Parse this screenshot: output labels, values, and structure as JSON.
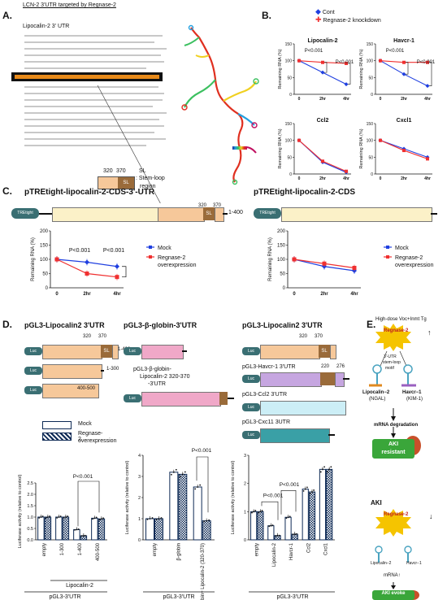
{
  "figure": {
    "panel_letters": {
      "a": "A.",
      "b": "B.",
      "c": "C.",
      "d": "D.",
      "e": "E."
    },
    "panel_a": {
      "heading": "LCN-2  3'UTR targeted by Regnase-2",
      "subheading": "Lipocalin-2 3' UTR",
      "sl_tick_320": "320",
      "sl_tick_370": "370",
      "sl_label": "SL",
      "sl_caption_1": "SL",
      "sl_caption_2": ": Stem-loop",
      "sl_caption_3": "region",
      "colorbar_colors": [
        "#1a2a9a",
        "#22a0e0",
        "#3cc060",
        "#f0d020",
        "#e03020",
        "#c01060"
      ]
    },
    "panel_b": {
      "legend_cont": "Cont",
      "legend_kd": "Regnase-2 knockdown",
      "color_cont": "#1f3fe0",
      "color_kd": "#f03030",
      "ylabel": "Remaining RNA (%)",
      "charts": [
        {
          "title": "Lipocalin-2",
          "p1": "P<0.001",
          "p2": "P<0.001"
        },
        {
          "title": "Havcr-1",
          "p1": "P<0.001",
          "p2": "P<0.001"
        },
        {
          "title": "Ccl2",
          "p1": "",
          "p2": ""
        },
        {
          "title": "Cxcl1",
          "p1": "",
          "p2": ""
        }
      ],
      "yticks": [
        "0",
        "50",
        "100",
        "150"
      ],
      "xticks": [
        "0",
        "2hr",
        "4hr"
      ]
    },
    "panel_c": {
      "title_left": "pTREtight-lipocalin-2-CDS-3'-UTR",
      "title_right": "pTREtight-lipocalin-2-CDS",
      "tre_label": "TREtight",
      "tick_320": "320",
      "tick_370": "370",
      "sl": "SL",
      "range_label": "1-400",
      "ylabel": "Remaining RNA (%)",
      "yticks": [
        "0",
        "50",
        "100",
        "150",
        "200"
      ],
      "xticks": [
        "0",
        "2hr",
        "4hr"
      ],
      "p_left_1": "P<0.001",
      "p_left_2": "P<0.001",
      "legend_mock": "Mock",
      "legend_reg_1": "Regnase-2",
      "legend_reg_2": "overexpression"
    },
    "panel_d": {
      "title_1": "pGL3-Lipocalin2 3'UTR",
      "title_2": "pGL3-β-globin-3'UTR",
      "title_3": "pGL3-Lipocalin2 3'UTR",
      "luc": "Luc",
      "sl": "SL",
      "tick_320": "320",
      "tick_370": "370",
      "tick_220": "220",
      "tick_276": "276",
      "range_1_400": "1-400",
      "range_1_300": "1-300",
      "range_400_500": "400-500",
      "bglobin_label": "pGL3-β-globin-",
      "chimera_label_1": "Lipocalin-2 320-370",
      "chimera_label_2": "-3'UTR",
      "havcr_label": "pGL3-Havcr-1 3'UTR",
      "ccl2_label": "pGL3-Ccl2 3'UTR",
      "cxcl_label": "pGL3-Cxc11 3UTR",
      "legend_mock": "Mock",
      "legend_reg_1": "Regnase-2",
      "legend_reg_2": "overexpression",
      "ylabel": "Luciferase activity (relative to control)",
      "yticks": [
        "0.0",
        "0.5",
        "1.0",
        "1.5",
        "2.0",
        "2.5"
      ],
      "yticks_3": [
        "0",
        "1",
        "2",
        "3"
      ],
      "pval": "P<0.001",
      "group_lipocalin": "Lipocalin-2",
      "group_pgl3": "pGL3-3'UTR"
    },
    "panel_e": {
      "top_title": "High-dose Voc+Inmt Tg",
      "regnase": "Regnase-2",
      "up_arrow": "↑",
      "down_arrow": "↓",
      "utr_motif_1": "3'-UTR",
      "utr_motif_2": "stem-loop",
      "utr_motif_3": "motif",
      "lip_label": "Lipocalin−2",
      "lip_sub": "(NGAL)",
      "hav_label": "Havcr−1",
      "hav_sub": "(KIM-1)",
      "degradation": "mRNA degradation",
      "aki_resistant_1": "AKI",
      "aki_resistant_2": "resistant",
      "aki": "AKI",
      "mrna_up": "mRNA↑",
      "aki_evoke_1": "AKI",
      "aki_evoke_2": "evoke",
      "color_regnase": "#f5c400",
      "color_aki_box": "#3aa63a",
      "color_aki_text": "#e02020"
    }
  },
  "chart_data": [
    {
      "type": "line",
      "title": "Lipocalin-2",
      "x": [
        "0",
        "2hr",
        "4hr"
      ],
      "ylabel": "Remaining RNA (%)",
      "ylim": [
        0,
        150
      ],
      "series": [
        {
          "name": "Cont",
          "values": [
            100,
            65,
            30
          ]
        },
        {
          "name": "Regnase-2 knockdown",
          "values": [
            100,
            95,
            92
          ]
        }
      ]
    },
    {
      "type": "line",
      "title": "Havcr-1",
      "x": [
        "0",
        "2hr",
        "4hr"
      ],
      "ylabel": "Remaining RNA (%)",
      "ylim": [
        0,
        150
      ],
      "series": [
        {
          "name": "Cont",
          "values": [
            100,
            60,
            25
          ]
        },
        {
          "name": "Regnase-2 knockdown",
          "values": [
            100,
            95,
            95
          ]
        }
      ]
    },
    {
      "type": "line",
      "title": "Ccl2",
      "x": [
        "0",
        "2hr",
        "4hr"
      ],
      "ylabel": "Remaining RNA (%)",
      "ylim": [
        0,
        150
      ],
      "series": [
        {
          "name": "Cont",
          "values": [
            100,
            35,
            5
          ]
        },
        {
          "name": "Regnase-2 knockdown",
          "values": [
            100,
            38,
            8
          ]
        }
      ]
    },
    {
      "type": "line",
      "title": "Cxcl1",
      "x": [
        "0",
        "2hr",
        "4hr"
      ],
      "ylabel": "Remaining RNA (%)",
      "ylim": [
        0,
        150
      ],
      "series": [
        {
          "name": "Cont",
          "values": [
            100,
            75,
            50
          ]
        },
        {
          "name": "Regnase-2 knockdown",
          "values": [
            100,
            70,
            45
          ]
        }
      ]
    },
    {
      "type": "line",
      "title": "pTREtight-lipocalin-2-CDS-3'-UTR",
      "x": [
        "0",
        "2hr",
        "4hr"
      ],
      "ylabel": "Remaining RNA (%)",
      "ylim": [
        0,
        200
      ],
      "series": [
        {
          "name": "Mock",
          "values": [
            100,
            90,
            75
          ]
        },
        {
          "name": "Regnase-2 overexpression",
          "values": [
            100,
            50,
            38
          ]
        }
      ]
    },
    {
      "type": "line",
      "title": "pTREtight-lipocalin-2-CDS",
      "x": [
        "0",
        "2hr",
        "4hr"
      ],
      "ylabel": "Remaining RNA (%)",
      "ylim": [
        0,
        200
      ],
      "series": [
        {
          "name": "Mock",
          "values": [
            100,
            75,
            60
          ]
        },
        {
          "name": "Regnase-2 overexpression",
          "values": [
            100,
            85,
            70
          ]
        }
      ]
    },
    {
      "type": "bar",
      "categories": [
        "empty",
        "1-300",
        "1-400",
        "400-500"
      ],
      "ylabel": "Luciferase activity (relative to control)",
      "ylim": [
        0,
        2.5
      ],
      "series": [
        {
          "name": "Mock",
          "values": [
            1.0,
            1.0,
            0.45,
            0.95
          ]
        },
        {
          "name": "Regnase-2 overexpression",
          "values": [
            1.0,
            1.0,
            0.18,
            0.92
          ]
        }
      ]
    },
    {
      "type": "bar",
      "categories": [
        "empty",
        "β-globin",
        "β-globin+ Lipocalin-2 (320-370)"
      ],
      "ylabel": "Luciferase activity (relative to control)",
      "ylim": [
        0,
        4
      ],
      "series": [
        {
          "name": "Mock",
          "values": [
            1.0,
            3.2,
            2.5
          ]
        },
        {
          "name": "Regnase-2 overexpression",
          "values": [
            1.0,
            3.1,
            0.9
          ]
        }
      ]
    },
    {
      "type": "bar",
      "categories": [
        "empty",
        "Lipocalin-2",
        "Havcr-1",
        "Ccl2",
        "Cxcl1"
      ],
      "ylabel": "Luciferase activity (relative to control)",
      "ylim": [
        0,
        3
      ],
      "series": [
        {
          "name": "Mock",
          "values": [
            1.0,
            0.5,
            0.8,
            1.8,
            2.5
          ]
        },
        {
          "name": "Regnase-2 overexpression",
          "values": [
            1.0,
            0.15,
            0.2,
            1.7,
            2.5
          ]
        }
      ]
    }
  ]
}
